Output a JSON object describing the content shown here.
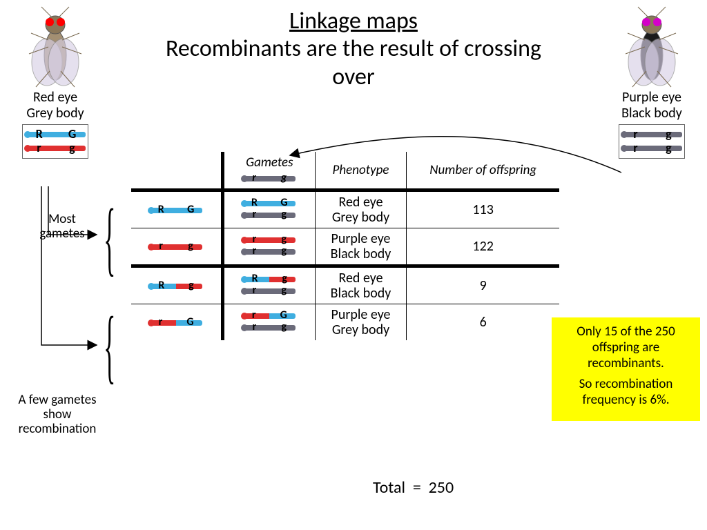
{
  "title": {
    "main": "Linkage maps",
    "sub": "Recombinants are the result of crossing over"
  },
  "leftFly": {
    "label": "Red eye\nGrey body",
    "eyeColor": "#ff0000",
    "bodyColor": "#a38f72",
    "geno": {
      "topColor": "blue",
      "botColor": "red",
      "top": [
        "R",
        "G"
      ],
      "bot": [
        "r",
        "g"
      ]
    }
  },
  "rightFly": {
    "label": "Purple eye\nBlack body",
    "eyeColor": "#d400c8",
    "bodyColor": "#1a1a1a",
    "geno": {
      "topColor": "grey",
      "botColor": "grey",
      "top": [
        "r",
        "g"
      ],
      "bot": [
        "r",
        "g"
      ]
    }
  },
  "sideLabels": {
    "most": "Most gametes",
    "few": "A few gametes show recombination"
  },
  "headers": {
    "gametes": "Gametes",
    "phenotype": "Phenotype",
    "offspring": "Number of offspring"
  },
  "headerGamete": {
    "color": "grey",
    "alleles": [
      "r",
      "g"
    ]
  },
  "rows": [
    {
      "parentGamete": {
        "color": "blue",
        "recomb": null,
        "alleles": [
          "R",
          "G"
        ]
      },
      "offGamete": {
        "top": {
          "color": "blue",
          "recomb": null,
          "alleles": [
            "R",
            "G"
          ]
        },
        "bot": {
          "color": "grey",
          "recomb": null,
          "alleles": [
            "r",
            "g"
          ]
        }
      },
      "phenotype": "Red eye\nGrey body",
      "count": 113
    },
    {
      "parentGamete": {
        "color": "red",
        "recomb": null,
        "alleles": [
          "r",
          "g"
        ]
      },
      "offGamete": {
        "top": {
          "color": "red",
          "recomb": null,
          "alleles": [
            "r",
            "g"
          ]
        },
        "bot": {
          "color": "grey",
          "recomb": null,
          "alleles": [
            "r",
            "g"
          ]
        }
      },
      "phenotype": "Purple eye\nBlack body",
      "count": 122
    },
    {
      "parentGamete": {
        "color": null,
        "recomb": "lr",
        "alleles": [
          "R",
          "g"
        ]
      },
      "offGamete": {
        "top": {
          "color": null,
          "recomb": "lr",
          "alleles": [
            "R",
            "g"
          ]
        },
        "bot": {
          "color": "grey",
          "recomb": null,
          "alleles": [
            "r",
            "g"
          ]
        }
      },
      "phenotype": "Red eye\nBlack body",
      "count": 9
    },
    {
      "parentGamete": {
        "color": null,
        "recomb": "rl",
        "alleles": [
          "r",
          "G"
        ]
      },
      "offGamete": {
        "top": {
          "color": null,
          "recomb": "rl",
          "alleles": [
            "r",
            "G"
          ]
        },
        "bot": {
          "color": "grey",
          "recomb": null,
          "alleles": [
            "r",
            "g"
          ]
        }
      },
      "phenotype": "Purple eye\nGrey body",
      "count": 6
    }
  ],
  "total": {
    "label": "Total",
    "value": 250
  },
  "callout": {
    "line1": "Only 15 of the 250 offspring are recombinants.",
    "line2": "So recombination frequency is 6%."
  },
  "colors": {
    "blue": "#3faee0",
    "red": "#e03030",
    "grey": "#6b6b7a",
    "calloutBg": "#ffff00"
  }
}
